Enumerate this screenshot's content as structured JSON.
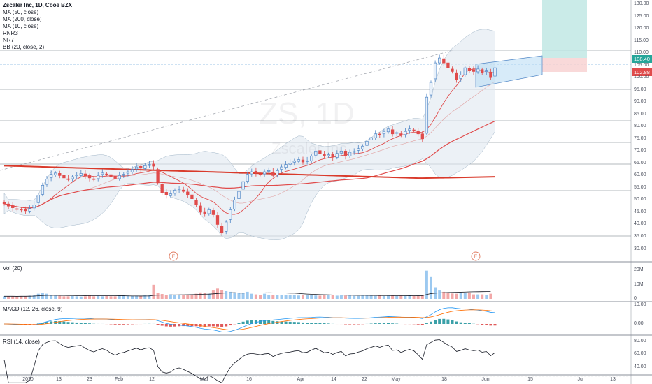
{
  "legend": {
    "title": "Zscaler Inc, 1D, Cboe BZX",
    "items": [
      "MA (50, close)",
      "MA (200, close)",
      "MA (10, close)",
      "RNR3",
      "NR7",
      "BB (20, close, 2)"
    ]
  },
  "watermark": {
    "symbol": "ZS, 1D",
    "name": "Zscaler Inc"
  },
  "panes": {
    "volume": "Vol (20)",
    "macd": "MACD (12, 26, close, 9)",
    "rsi": "RSI (14, close)"
  },
  "price_tags": {
    "upper": "108.40",
    "lower": "102.88"
  },
  "earnings_marker": "E",
  "colors": {
    "up": "#4f86c6",
    "down": "#e04b4b",
    "up_vol": "#9cc9f0",
    "down_vol": "#f2a8a8",
    "ma200": "#d93a2b",
    "ma50": "#e04b4b",
    "ma10": "#e04b4b",
    "bb_fill": "#dfe8f0",
    "zone_green": "#bde6e2",
    "zone_red": "#f8d0d0",
    "channel": "#b7daf4"
  },
  "chart_data": {
    "type": "candlestick",
    "symbol": "Zscaler Inc, 1D, Cboe BZX",
    "x_tick_labels": [
      "2020",
      "13",
      "23",
      "Feb",
      "12",
      "Mar",
      "16",
      "Apr",
      "14",
      "22",
      "May",
      "18",
      "Jun",
      "15",
      "Jul",
      "13"
    ],
    "y_ticks": [
      30,
      35,
      40,
      45,
      50,
      55,
      60,
      65,
      70,
      75,
      80,
      85,
      90,
      95,
      100,
      105,
      110,
      115,
      120,
      125,
      130
    ],
    "ylim": [
      25,
      132
    ],
    "volume_ticks": [
      "20M",
      "10M",
      "0"
    ],
    "macd_ticks": [
      "10.00",
      "0.00"
    ],
    "rsi_ticks": [
      "80.00",
      "60.00",
      "40.00"
    ],
    "closes": [
      48.5,
      47.5,
      46.8,
      46.2,
      46.0,
      45.6,
      46.5,
      48.0,
      52.0,
      56.0,
      58.5,
      60.5,
      61.0,
      60.0,
      59.0,
      58.5,
      59.5,
      60.2,
      60.8,
      59.8,
      59.0,
      58.5,
      60.0,
      61.0,
      60.5,
      59.5,
      58.8,
      60.0,
      60.5,
      61.5,
      62.5,
      63.5,
      63.0,
      64.0,
      64.5,
      63.8,
      57.0,
      53.0,
      52.0,
      52.5,
      54.0,
      54.5,
      53.5,
      52.0,
      50.5,
      48.0,
      45.0,
      44.5,
      46.0,
      44.0,
      40.0,
      36.5,
      41.0,
      46.0,
      50.0,
      53.5,
      57.5,
      60.5,
      61.5,
      61.0,
      60.5,
      61.5,
      62.0,
      60.0,
      62.0,
      63.5,
      64.5,
      65.0,
      66.0,
      66.5,
      65.5,
      66.0,
      68.0,
      70.0,
      69.0,
      68.0,
      68.5,
      67.5,
      69.0,
      70.0,
      68.0,
      69.5,
      69.8,
      71.0,
      72.0,
      74.0,
      75.5,
      77.0,
      76.5,
      78.0,
      79.0,
      77.0,
      77.5,
      76.5,
      78.0,
      79.0,
      78.5,
      77.0,
      75.0,
      92.0,
      98.0,
      106.0,
      108.0,
      106.0,
      104.0,
      102.5,
      99.0,
      101.0,
      104.0,
      103.0,
      102.5,
      103.5,
      102.0,
      103.0,
      100.0,
      104.0
    ],
    "volume_millions": [
      2,
      2,
      2,
      1.8,
      2.2,
      2,
      2.5,
      3,
      4,
      4.5,
      4,
      3,
      2.5,
      2.3,
      2,
      2,
      2.2,
      2,
      1.8,
      2,
      2.5,
      2,
      2.3,
      2,
      2.2,
      2,
      2,
      2.5,
      2.8,
      2.6,
      2.4,
      2.5,
      2.2,
      3,
      2.8,
      11,
      4.5,
      3.8,
      3.2,
      3.5,
      3,
      3,
      2.8,
      3.2,
      3.5,
      4,
      5,
      4.5,
      4,
      6.5,
      8,
      7,
      6,
      5.5,
      5,
      4.5,
      4.8,
      5.5,
      4,
      3.5,
      3,
      4,
      3.2,
      3,
      2.8,
      3,
      3.2,
      3,
      2.8,
      2.6,
      3,
      2.7,
      3,
      2.6,
      2.5,
      2.8,
      3.2,
      2.8,
      2.5,
      2.7,
      2.5,
      2.6,
      2.4,
      2.3,
      2.5,
      2.6,
      2.4,
      2.3,
      2.5,
      2.2,
      2.4,
      2.5,
      2.2,
      2.4,
      2.3,
      2.5,
      2.4,
      2.2,
      3,
      22,
      17,
      9,
      6.5,
      5.5,
      5,
      4.2,
      4,
      4.5,
      4.5,
      5,
      3.5,
      3.5,
      3.5,
      3,
      4
    ]
  }
}
